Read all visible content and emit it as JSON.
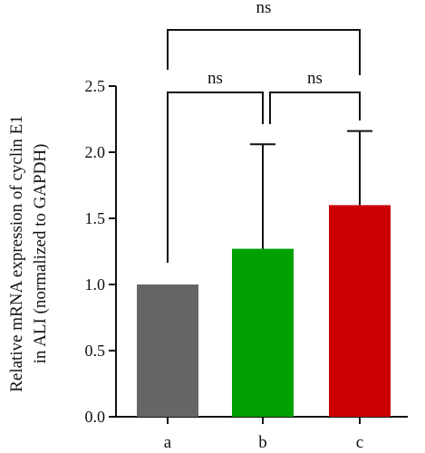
{
  "chart_data": {
    "type": "bar",
    "categories": [
      "a",
      "b",
      "c"
    ],
    "values": [
      1.0,
      1.27,
      1.6
    ],
    "error_upper": [
      1.0,
      2.06,
      2.16
    ],
    "colors": [
      "#666666",
      "#00a000",
      "#cc0000"
    ],
    "ylabel_lines": [
      "Relative mRNA expression of cyclin E1",
      "in ALI (normalized to GAPDH)"
    ],
    "xlabel": "",
    "title": "",
    "ylim": [
      0.0,
      2.5
    ],
    "yticks": [
      "0.0",
      "0.5",
      "1.0",
      "1.5",
      "2.0",
      "2.5"
    ],
    "grid": false,
    "significance": [
      {
        "from": 0,
        "to": 1,
        "label": "ns"
      },
      {
        "from": 1,
        "to": 2,
        "label": "ns"
      },
      {
        "from": 0,
        "to": 2,
        "label": "ns"
      }
    ]
  }
}
